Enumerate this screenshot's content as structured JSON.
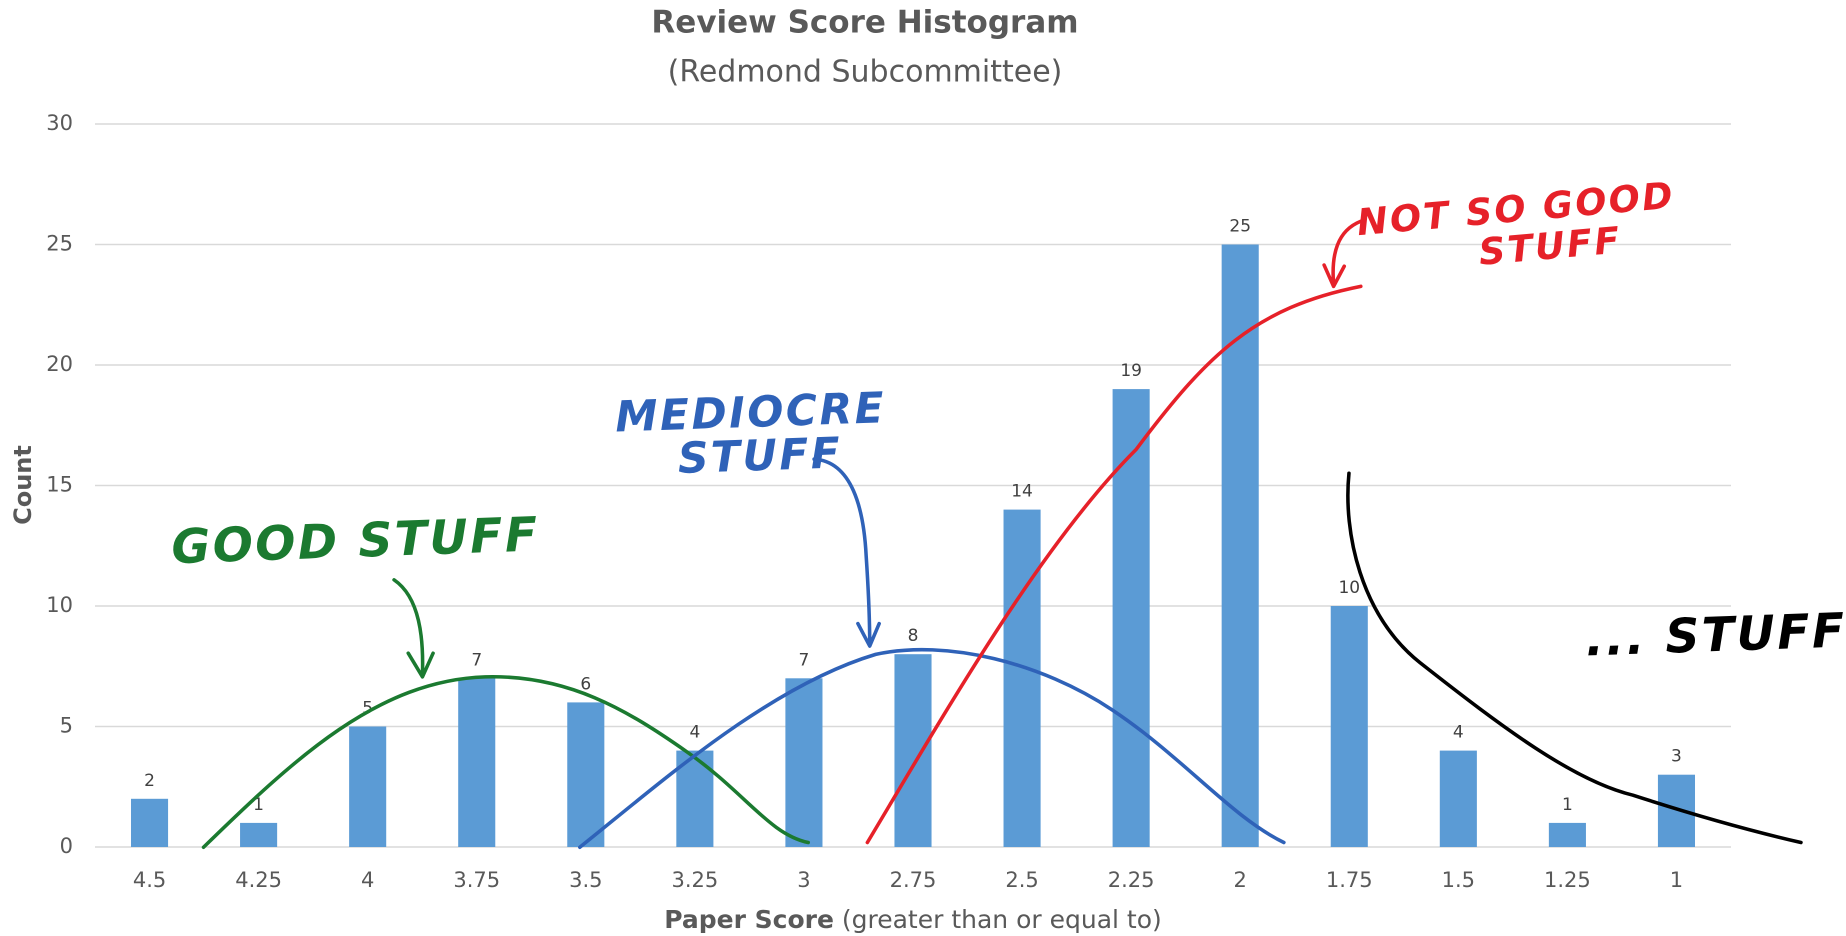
{
  "chart_data": {
    "type": "bar",
    "title": "Review Score Histogram",
    "subtitle": "(Redmond Subcommittee)",
    "y_label": "Count",
    "x_label": {
      "bold": "Paper Score",
      "rest": "(greater than or equal to)"
    },
    "categories": [
      "4.5",
      "4.25",
      "4",
      "3.75",
      "3.5",
      "3.25",
      "3",
      "2.75",
      "2.5",
      "2.25",
      "2",
      "1.75",
      "1.5",
      "1.25",
      "1"
    ],
    "values": [
      2,
      1,
      5,
      7,
      6,
      4,
      7,
      8,
      14,
      19,
      25,
      10,
      4,
      1,
      3
    ],
    "color": "#5b9bd5",
    "ylim": [
      0,
      30
    ],
    "yticks": [
      0,
      5,
      10,
      15,
      20,
      25,
      30
    ],
    "grid": true,
    "annotations": [
      {
        "lines": [
          "GOOD STUFF"
        ],
        "color": "#1b7a30"
      },
      {
        "lines": [
          "MEDIOCRE",
          "STUFF"
        ],
        "color": "#2f62b8"
      },
      {
        "lines": [
          "NOT SO GOOD",
          "STUFF"
        ],
        "color": "#e62129"
      },
      {
        "lines": [
          "... STUFF"
        ],
        "color": "#000000"
      }
    ]
  }
}
